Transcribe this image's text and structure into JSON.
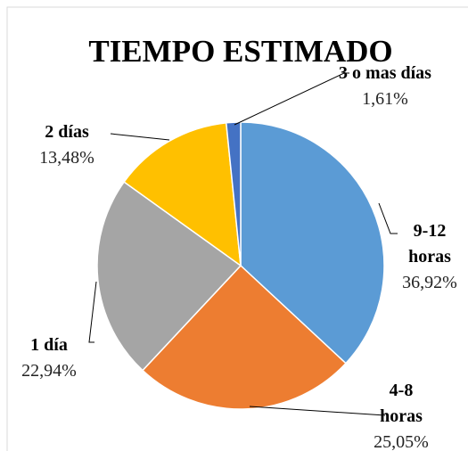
{
  "chart_data": {
    "type": "pie",
    "title": "TIEMPO ESTIMADO",
    "categories": [
      "9-12 horas",
      "4-8 horas",
      "1 día",
      "2 días",
      "3 o mas días"
    ],
    "values": [
      36.92,
      25.05,
      22.94,
      13.48,
      1.61
    ],
    "value_labels": [
      "36,92%",
      "25,05%",
      "22,94%",
      "13,48%",
      "1,61%"
    ],
    "colors": [
      "#5b9bd5",
      "#ed7d31",
      "#a5a5a5",
      "#ffc000",
      "#4472c4"
    ]
  }
}
